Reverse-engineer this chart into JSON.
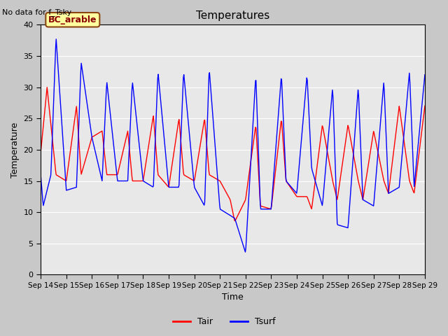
{
  "title": "Temperatures",
  "no_data_text": "No data for f_Tsky",
  "bc_label": "BC_arable",
  "xlabel": "Time",
  "ylabel": "Temperature",
  "ylim": [
    0,
    40
  ],
  "yticks": [
    0,
    5,
    10,
    15,
    20,
    25,
    30,
    35,
    40
  ],
  "xtick_labels": [
    "Sep 14",
    "Sep 15",
    "Sep 16",
    "Sep 17",
    "Sep 18",
    "Sep 19",
    "Sep 20",
    "Sep 21",
    "Sep 22",
    "Sep 23",
    "Sep 24",
    "Sep 25",
    "Sep 26",
    "Sep 27",
    "Sep 28",
    "Sep 29"
  ],
  "legend_labels": [
    "Tair",
    "Tsurf"
  ],
  "line_colors": [
    "red",
    "blue"
  ],
  "fig_facecolor": "#c8c8c8",
  "plot_facecolor": "#e8e8e8",
  "tair_keypoints_t": [
    0.0,
    0.25,
    0.6,
    1.0,
    1.4,
    1.58,
    2.0,
    2.4,
    2.58,
    3.0,
    3.4,
    3.58,
    4.0,
    4.4,
    4.58,
    5.0,
    5.4,
    5.58,
    6.0,
    6.4,
    6.58,
    7.0,
    7.4,
    7.58,
    8.0,
    8.4,
    8.58,
    9.0,
    9.4,
    9.58,
    10.0,
    10.4,
    10.58,
    11.0,
    11.4,
    11.58,
    12.0,
    12.4,
    12.58,
    13.0,
    13.4,
    13.58,
    14.0,
    14.4,
    14.58,
    15.0
  ],
  "tair_keypoints_v": [
    19.5,
    30,
    16,
    15,
    27,
    16,
    22,
    23,
    16,
    16,
    23,
    15,
    15,
    25.5,
    16,
    14,
    25,
    16,
    15,
    25,
    16,
    15,
    12,
    8.5,
    12,
    24,
    11,
    10.5,
    25,
    15,
    12.5,
    12.5,
    10.5,
    24,
    15,
    12,
    24,
    15,
    12,
    23,
    15,
    13,
    27,
    15,
    13,
    27
  ],
  "tsurf_keypoints_t": [
    0.0,
    0.1,
    0.4,
    0.6,
    1.0,
    1.4,
    1.58,
    2.0,
    2.4,
    2.58,
    3.0,
    3.4,
    3.58,
    4.0,
    4.4,
    4.58,
    5.0,
    5.4,
    5.58,
    6.0,
    6.4,
    6.58,
    7.0,
    7.4,
    7.58,
    8.0,
    8.4,
    8.58,
    9.0,
    9.4,
    9.58,
    10.0,
    10.4,
    10.58,
    11.0,
    11.4,
    11.58,
    12.0,
    12.4,
    12.58,
    13.0,
    13.4,
    13.58,
    14.0,
    14.4,
    14.58,
    15.0
  ],
  "tsurf_keypoints_v": [
    16,
    11,
    16,
    38,
    13.5,
    14,
    34,
    22,
    15,
    31,
    15,
    15,
    31,
    15,
    14,
    32.5,
    14,
    14,
    32.5,
    14,
    11,
    33,
    10.5,
    9.5,
    9,
    3.5,
    32,
    10.5,
    10.5,
    32,
    15,
    13,
    32,
    17,
    11,
    30,
    8,
    7.5,
    30,
    12,
    11,
    31,
    13,
    14,
    32.5,
    14,
    32
  ]
}
